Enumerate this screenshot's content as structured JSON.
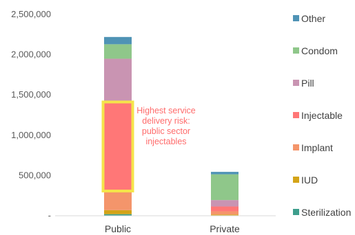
{
  "chart_data": {
    "type": "bar",
    "stacked": true,
    "categories": [
      "Public",
      "Private"
    ],
    "series": [
      {
        "name": "Sterilization",
        "color": "#3d9e8c",
        "values": [
          20000,
          5000
        ]
      },
      {
        "name": "IUD",
        "color": "#d4a418",
        "values": [
          50000,
          10000
        ]
      },
      {
        "name": "Implant",
        "color": "#f4956b",
        "values": [
          250000,
          40000
        ]
      },
      {
        "name": "Injectable",
        "color": "#ff7777",
        "values": [
          1080000,
          60000
        ]
      },
      {
        "name": "Pill",
        "color": "#c994b2",
        "values": [
          550000,
          80000
        ]
      },
      {
        "name": "Condom",
        "color": "#8fc78a",
        "values": [
          180000,
          320000
        ]
      },
      {
        "name": "Other",
        "color": "#4f93b5",
        "values": [
          90000,
          30000
        ]
      }
    ],
    "yticks": [
      {
        "value": 0,
        "label": "-"
      },
      {
        "value": 500000,
        "label": "500,000"
      },
      {
        "value": 1000000,
        "label": "1,000,000"
      },
      {
        "value": 1500000,
        "label": "1,500,000"
      },
      {
        "value": 2000000,
        "label": "2,000,000"
      },
      {
        "value": 2500000,
        "label": "2,500,000"
      }
    ],
    "ylim": [
      0,
      2500000
    ],
    "xlabel": "",
    "ylabel": "",
    "grid": false,
    "legend_position": "right",
    "highlight": {
      "category": "Public",
      "series": "Injectable",
      "color": "#f5e44a"
    },
    "annotation": {
      "lines": [
        "Highest service",
        "delivery risk:",
        "public sector",
        "injectables"
      ],
      "color": "#ff6b6b"
    }
  }
}
